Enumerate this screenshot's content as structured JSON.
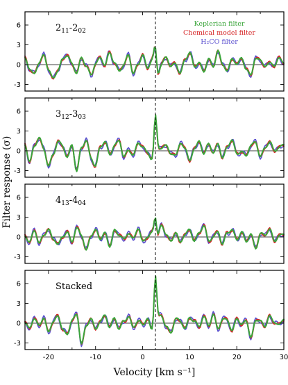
{
  "chart_data": {
    "type": "line",
    "xlabel": "Velocity [km s⁻¹]",
    "ylabel": "Filter response (σ)",
    "xlim": [
      -25,
      30
    ],
    "x_ticks": [
      -20,
      -10,
      0,
      10,
      20,
      30
    ],
    "ylim": [
      -4,
      8
    ],
    "y_ticks": [
      -3,
      0,
      3,
      6
    ],
    "vertical_dashed_line": 2.7,
    "grid": false,
    "legend_position": "top-right of first panel",
    "legend": [
      {
        "name": "Keplerian filter",
        "color": "#3aa53a"
      },
      {
        "name": "Chemical model filter",
        "color": "#d62728"
      },
      {
        "name": "H₂CO filter",
        "color": "#5a4fcf"
      }
    ],
    "panels": [
      {
        "label_main": "2",
        "label_sub1": "11",
        "label_mid": "-2",
        "label_sub2": "02",
        "peak_velocity": 2.7,
        "peak": 4.3,
        "noise": [
          0.8,
          -0.4,
          -1.4,
          0.3,
          1.2,
          -0.6,
          -2.0,
          -0.8,
          0.6,
          1.4,
          0.2,
          -1.1,
          0.9,
          -0.3,
          -1.6,
          0.4,
          1.0,
          -0.2,
          1.7,
          0.5,
          -0.9,
          -0.1,
          1.3,
          -1.3,
          0.2,
          1.5,
          -0.7,
          0.6,
          -1.8,
          0.1,
          1.1,
          -0.5,
          0.3,
          -1.2,
          0.8,
          1.6,
          -0.3,
          0.4,
          -0.9,
          0.7,
          -0.4,
          2.1,
          0.3,
          -1.1,
          0.9,
          -0.2,
          1.4,
          -0.8,
          -1.5,
          0.6,
          1.0,
          -0.3,
          0.5,
          -0.6,
          1.2,
          0.2
        ]
      },
      {
        "label_main": "3",
        "label_sub1": "12",
        "label_mid": "-3",
        "label_sub2": "03",
        "peak_velocity": 2.7,
        "peak": 5.7,
        "noise": [
          0.9,
          -1.4,
          0.6,
          1.9,
          0.2,
          -2.1,
          -0.5,
          1.3,
          0.6,
          -0.9,
          1.1,
          -3.2,
          0.4,
          1.5,
          -0.8,
          -2.3,
          0.5,
          1.2,
          -0.4,
          0.9,
          1.6,
          -1.2,
          0.2,
          -0.6,
          1.4,
          0.3,
          -0.2,
          -1.5,
          0.7,
          0.1,
          0.9,
          -0.7,
          -0.3,
          1.0,
          0.4,
          -1.8,
          0.6,
          1.5,
          -0.4,
          0.8,
          -0.2,
          1.1,
          -0.9,
          0.3,
          1.7,
          -0.5,
          0.2,
          -1.0,
          0.8,
          1.2,
          -0.6,
          0.4,
          1.3,
          -0.2,
          0.7,
          1.0
        ]
      },
      {
        "label_main": "4",
        "label_sub1": "13",
        "label_mid": "-4",
        "label_sub2": "04",
        "peak_velocity": 2.7,
        "peak": 3.6,
        "noise": [
          0.4,
          -0.8,
          0.9,
          -1.1,
          0.5,
          1.2,
          -0.3,
          -1.4,
          0.2,
          0.8,
          -0.6,
          1.1,
          0.3,
          -2.0,
          0.4,
          0.9,
          -0.4,
          0.6,
          -1.2,
          1.0,
          0.2,
          -0.5,
          0.8,
          -0.2,
          1.3,
          -0.9,
          0.1,
          0.7,
          -0.3,
          1.5,
          0.4,
          -0.6,
          0.9,
          -1.0,
          0.3,
          1.1,
          -0.4,
          0.6,
          1.6,
          -0.7,
          0.2,
          0.9,
          -1.2,
          0.5,
          1.2,
          -0.3,
          0.8,
          -0.9,
          0.4,
          -1.6,
          0.6,
          0.2,
          1.0,
          -0.5,
          0.3,
          0.5
        ]
      },
      {
        "label_text": "Stacked",
        "peak_velocity": 2.7,
        "peak": 7.3,
        "noise": [
          0.3,
          -1.0,
          0.7,
          -0.4,
          1.1,
          -1.5,
          0.2,
          0.9,
          -0.6,
          -1.8,
          0.5,
          1.0,
          -2.9,
          -0.4,
          0.8,
          -1.2,
          0.3,
          1.3,
          -0.5,
          0.6,
          -1.0,
          0.4,
          1.2,
          -0.7,
          0.2,
          -0.3,
          0.9,
          -1.1,
          0.5,
          1.0,
          -0.4,
          -1.3,
          0.6,
          0.2,
          -0.9,
          1.1,
          0.3,
          -0.6,
          0.8,
          -0.2,
          1.4,
          -0.8,
          0.3,
          0.6,
          -1.1,
          0.9,
          -0.5,
          0.4,
          -2.2,
          0.7,
          0.2,
          -0.6,
          1.0,
          0.4,
          -0.3,
          0.6
        ]
      }
    ]
  }
}
